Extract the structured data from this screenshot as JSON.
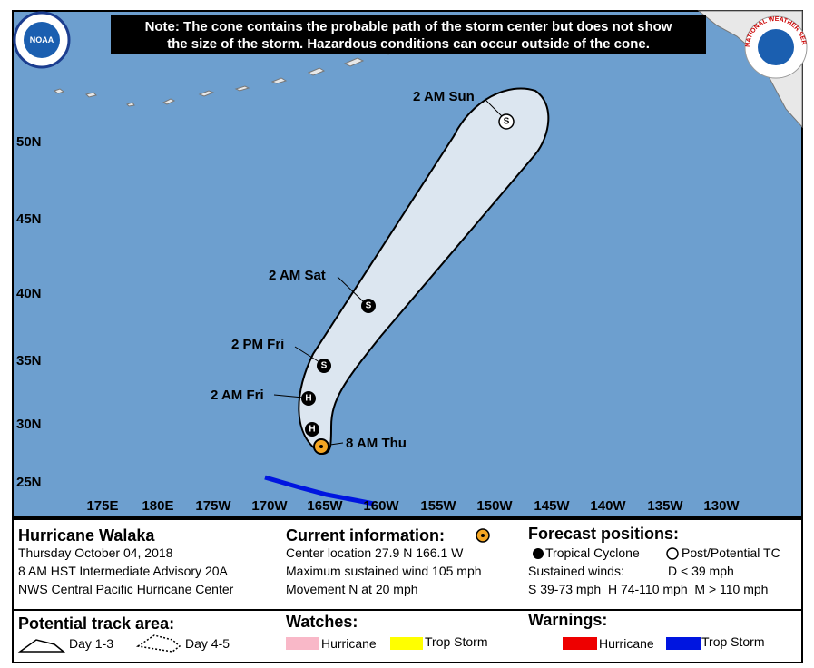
{
  "note": [
    "Note: The cone contains the probable path of the storm center but does not show",
    "the size of the storm. Hazardous conditions can occur outside of the cone."
  ],
  "logos": {
    "noaa": "NOAA",
    "nws": "NATIONAL WEATHER SERVICE"
  },
  "map": {
    "lat_labels": [
      "50N",
      "45N",
      "40N",
      "35N",
      "30N",
      "25N"
    ],
    "lon_labels": [
      "175E",
      "180E",
      "175W",
      "170W",
      "165W",
      "160W",
      "155W",
      "150W",
      "145W",
      "140W",
      "135W",
      "130W"
    ],
    "current_label": "8 AM Thu",
    "track": [
      {
        "symbol": "H"
      },
      {
        "label": "2 AM Fri",
        "symbol": "H"
      },
      {
        "label": "2 PM Fri",
        "symbol": "S"
      },
      {
        "label": "2 AM Sat",
        "symbol": "S"
      },
      {
        "label": "2 AM Sun",
        "symbol": "S"
      }
    ]
  },
  "info": {
    "storm": {
      "title": "Hurricane Walaka",
      "lines": [
        "Thursday October 04, 2018",
        "8 AM HST Intermediate Advisory 20A",
        "NWS Central Pacific Hurricane Center"
      ]
    },
    "current": {
      "title": "Current information:",
      "lines": [
        "Center location 27.9 N 166.1 W",
        "Maximum sustained wind 105 mph",
        "Movement N at 20 mph"
      ]
    },
    "forecast": {
      "title": "Forecast positions:",
      "tropical": "Tropical Cyclone",
      "post": "Post/Potential TC",
      "winds": "Sustained winds:",
      "d": "D < 39 mph",
      "scale": "S 39-73 mph  H 74-110 mph  M > 110 mph"
    },
    "track_area": {
      "title": "Potential track area:",
      "day13": "Day 1-3",
      "day45": "Day 4-5"
    },
    "watches": {
      "title": "Watches:",
      "hurricane": "Hurricane",
      "storm": "Trop Storm"
    },
    "warnings": {
      "title": "Warnings:",
      "hurricane": "Hurricane",
      "storm": "Trop Storm"
    }
  }
}
